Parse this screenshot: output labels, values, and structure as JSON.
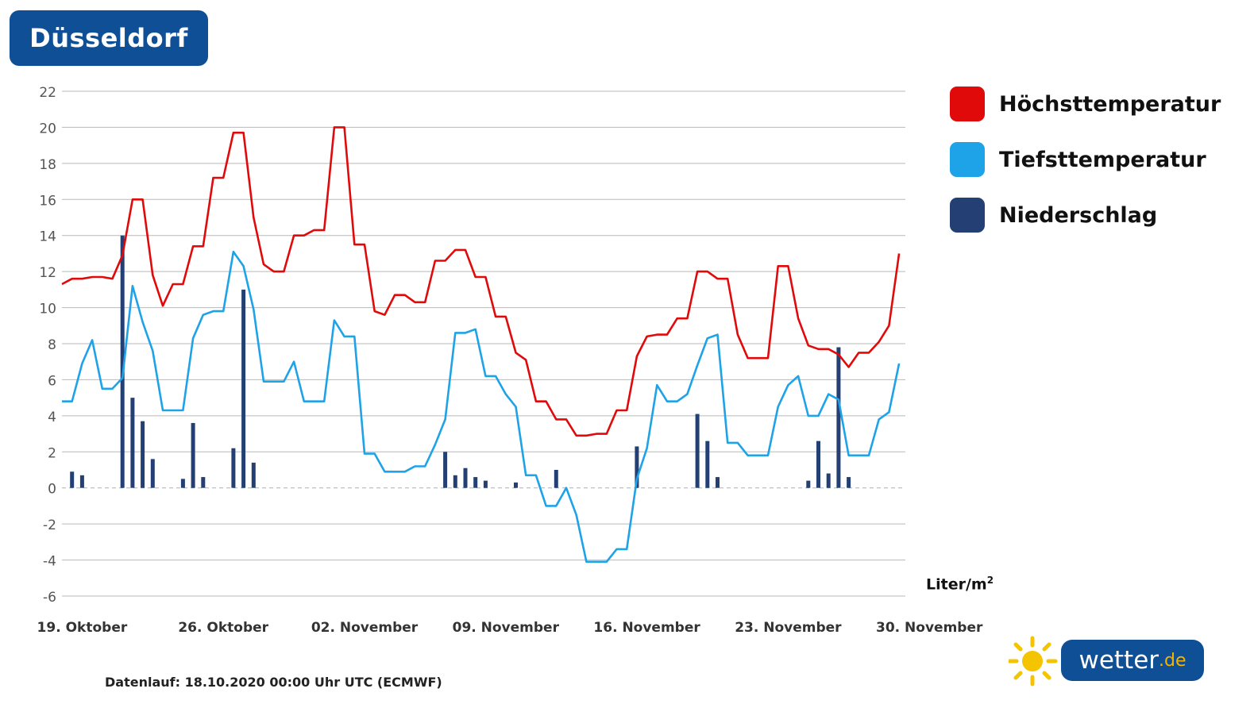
{
  "header": {
    "city": "Düsseldorf"
  },
  "colors": {
    "max": "#e10a0a",
    "min": "#1ea2e8",
    "precip": "#233f73",
    "brand": "#0f4f95",
    "grid": "#b9b9b9"
  },
  "legend": [
    {
      "label": "Höchsttemperatur",
      "color": "#e10a0a"
    },
    {
      "label": "Tiefsttemperatur",
      "color": "#1ea2e8"
    },
    {
      "label": "Niederschlag",
      "color": "#233f73"
    }
  ],
  "unit": {
    "text": "Liter/m",
    "sup": "2"
  },
  "footer": {
    "text": "Datenlauf: 18.10.2020 00:00 Uhr UTC (ECMWF)"
  },
  "logo": {
    "name": "wetter",
    "tld": ".de",
    "icon": "sun-icon"
  },
  "chart_data": {
    "type": "line",
    "x_start": "2020-10-18",
    "x_step_days": 0.5,
    "ylim": [
      -6,
      22
    ],
    "yticks": [
      -6,
      -4,
      -2,
      0,
      2,
      4,
      6,
      8,
      10,
      12,
      14,
      16,
      18,
      20,
      22
    ],
    "xtick_labels": [
      "19. Oktober",
      "26. Oktober",
      "02. November",
      "09. November",
      "16. November",
      "23. November",
      "30. November"
    ],
    "grid": true,
    "legend_position": "right",
    "series": [
      {
        "name": "Höchsttemperatur",
        "values": [
          11.3,
          11.6,
          11.6,
          11.7,
          11.7,
          11.6,
          12.9,
          16.0,
          16.0,
          11.8,
          10.1,
          11.3,
          11.3,
          13.4,
          13.4,
          17.2,
          17.2,
          19.7,
          19.7,
          15.0,
          12.4,
          12.0,
          12.0,
          14.0,
          14.0,
          14.3,
          14.3,
          20.0,
          20.0,
          13.5,
          13.5,
          9.8,
          9.6,
          10.7,
          10.7,
          10.3,
          10.3,
          12.6,
          12.6,
          13.2,
          13.2,
          11.7,
          11.7,
          9.5,
          9.5,
          7.5,
          7.1,
          4.8,
          4.8,
          3.8,
          3.8,
          2.9,
          2.9,
          3.0,
          3.0,
          4.3,
          4.3,
          7.3,
          8.4,
          8.5,
          8.5,
          9.4,
          9.4,
          12.0,
          12.0,
          11.6,
          11.6,
          8.5,
          7.2,
          7.2,
          7.2,
          12.3,
          12.3,
          9.4,
          7.9,
          7.7,
          7.7,
          7.4,
          6.7,
          7.5,
          7.5,
          8.1,
          9.0,
          13.0
        ]
      },
      {
        "name": "Tiefsttemperatur",
        "values": [
          4.8,
          4.8,
          6.9,
          8.2,
          5.5,
          5.5,
          6.1,
          11.2,
          9.2,
          7.6,
          4.3,
          4.3,
          4.3,
          8.3,
          9.6,
          9.8,
          9.8,
          13.1,
          12.3,
          9.9,
          5.9,
          5.9,
          5.9,
          7.0,
          4.8,
          4.8,
          4.8,
          9.3,
          8.4,
          8.4,
          1.9,
          1.9,
          0.9,
          0.9,
          0.9,
          1.2,
          1.2,
          2.4,
          3.8,
          8.6,
          8.6,
          8.8,
          6.2,
          6.2,
          5.2,
          4.5,
          0.7,
          0.7,
          -1.0,
          -1.0,
          0.0,
          -1.5,
          -4.1,
          -4.1,
          -4.1,
          -3.4,
          -3.4,
          0.5,
          2.2,
          5.7,
          4.8,
          4.8,
          5.2,
          6.8,
          8.3,
          8.5,
          2.5,
          2.5,
          1.8,
          1.8,
          1.8,
          4.5,
          5.7,
          6.2,
          4.0,
          4.0,
          5.2,
          4.9,
          1.8,
          1.8,
          1.8,
          3.8,
          4.2,
          6.9
        ]
      },
      {
        "name": "Niederschlag",
        "values": [
          0,
          0.9,
          0.7,
          0,
          0,
          0,
          14.0,
          5.0,
          3.7,
          1.6,
          0,
          0,
          0.5,
          3.6,
          0.6,
          0,
          0,
          2.2,
          11.0,
          1.4,
          0,
          0,
          0,
          0,
          0,
          0,
          0,
          0,
          0,
          0,
          0,
          0,
          0,
          0,
          0,
          0,
          0,
          0,
          2.0,
          0.7,
          1.1,
          0.6,
          0.4,
          0,
          0,
          0.3,
          0,
          0,
          0,
          1.0,
          0,
          0,
          0,
          0,
          0,
          0,
          0,
          2.3,
          0,
          0,
          0,
          0,
          0,
          4.1,
          2.6,
          0.6,
          0,
          0,
          0,
          0,
          0,
          0,
          0,
          0,
          0.4,
          2.6,
          0.8,
          7.8,
          0.6,
          0,
          0,
          0,
          0,
          0
        ]
      }
    ]
  }
}
